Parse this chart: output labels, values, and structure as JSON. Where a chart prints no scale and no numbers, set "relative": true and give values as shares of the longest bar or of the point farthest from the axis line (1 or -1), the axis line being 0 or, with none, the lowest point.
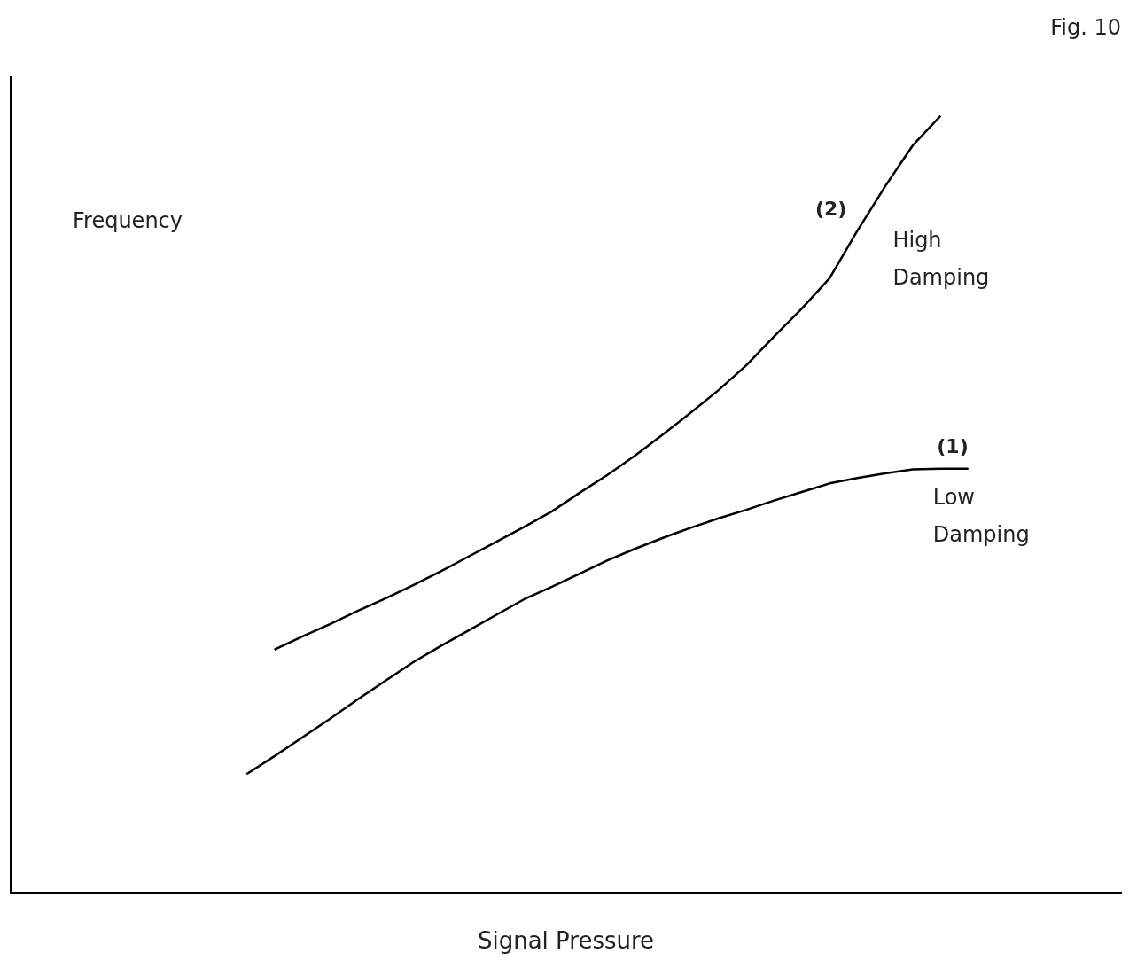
{
  "chart_data": {
    "type": "line",
    "title": "Fig. 10",
    "xlabel": "Signal Pressure",
    "ylabel": "Frequency",
    "relative": true,
    "marker": "none",
    "line_style": "solid",
    "legend": false,
    "grid": false,
    "categories": [
      null,
      null,
      null,
      null,
      null,
      null,
      null,
      null,
      null,
      null,
      null,
      null,
      null,
      null,
      null,
      null,
      null,
      null,
      null,
      null,
      null,
      null,
      null,
      null,
      null,
      null,
      null,
      null,
      null,
      null,
      null,
      null,
      null,
      null,
      null,
      null,
      null,
      null,
      null,
      null
    ],
    "series": [
      {
        "name": "(2)",
        "color": "#000000",
        "values": [
          null,
          null,
          null,
          null,
          null,
          null,
          null,
          null,
          null,
          0.313,
          0.33,
          0.346,
          0.363,
          0.379,
          0.396,
          0.414,
          0.433,
          0.452,
          0.471,
          0.491,
          0.515,
          0.538,
          0.563,
          0.59,
          0.618,
          0.647,
          0.679,
          0.716,
          0.752,
          0.791,
          0.852,
          0.909,
          0.962,
          1,
          null,
          null,
          null,
          null,
          null,
          null
        ]
      },
      {
        "name": "(1)",
        "color": "#000000",
        "values": [
          null,
          null,
          null,
          null,
          null,
          null,
          null,
          null,
          0.153,
          0.176,
          0.2,
          0.224,
          0.249,
          0.273,
          0.297,
          0.318,
          0.338,
          0.358,
          0.378,
          0.394,
          0.411,
          0.428,
          0.443,
          0.457,
          0.47,
          0.482,
          0.493,
          0.505,
          0.516,
          0.527,
          0.534,
          0.54,
          0.545,
          0.546,
          0.546,
          null,
          null,
          null,
          null,
          null
        ]
      }
    ],
    "annotations": [
      "High Damping",
      "Low Damping"
    ]
  }
}
